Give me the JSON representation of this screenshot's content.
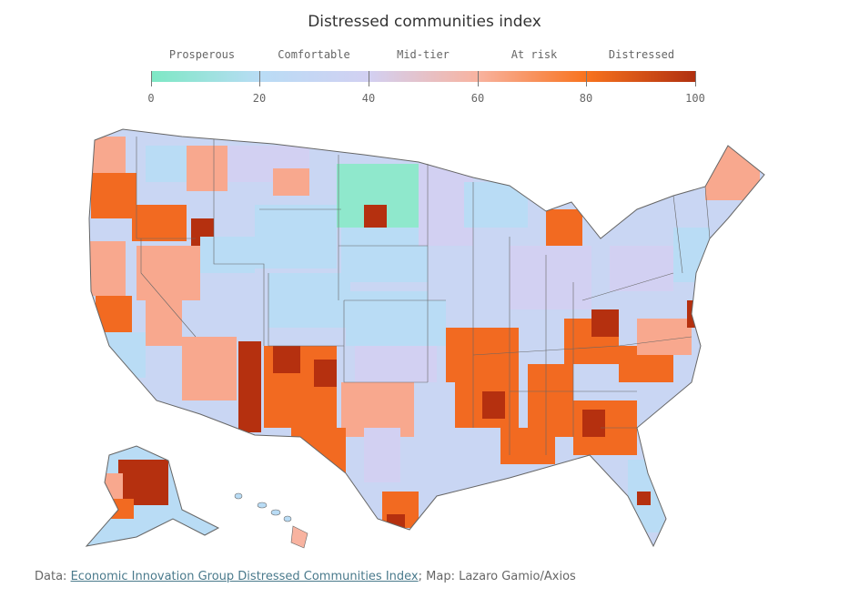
{
  "title": "Distressed communities index",
  "legend": {
    "categories": [
      "Prosperous",
      "Comfortable",
      "Mid-tier",
      "At risk",
      "Distressed"
    ],
    "ticks": [
      "0",
      "20",
      "40",
      "60",
      "80",
      "100"
    ],
    "range": [
      0,
      100
    ],
    "stops": [
      "#7de8c4",
      "#b9dcf5",
      "#d2d0f2",
      "#f8b3a0",
      "#f8731e",
      "#b03010"
    ]
  },
  "colors": {
    "prosperous": "#8fe8cc",
    "comfortable": "#b9dcf5",
    "mid_tier": "#d2d0f2",
    "at_risk": "#f8a88e",
    "distressed": "#f26a21",
    "most_distressed": "#b5300f",
    "border": "#666666"
  },
  "source": {
    "prefix": "Data: ",
    "link_text": "Economic Innovation Group Distressed Communities Index",
    "suffix": "; Map: Lazaro Gamio/Axios"
  }
}
